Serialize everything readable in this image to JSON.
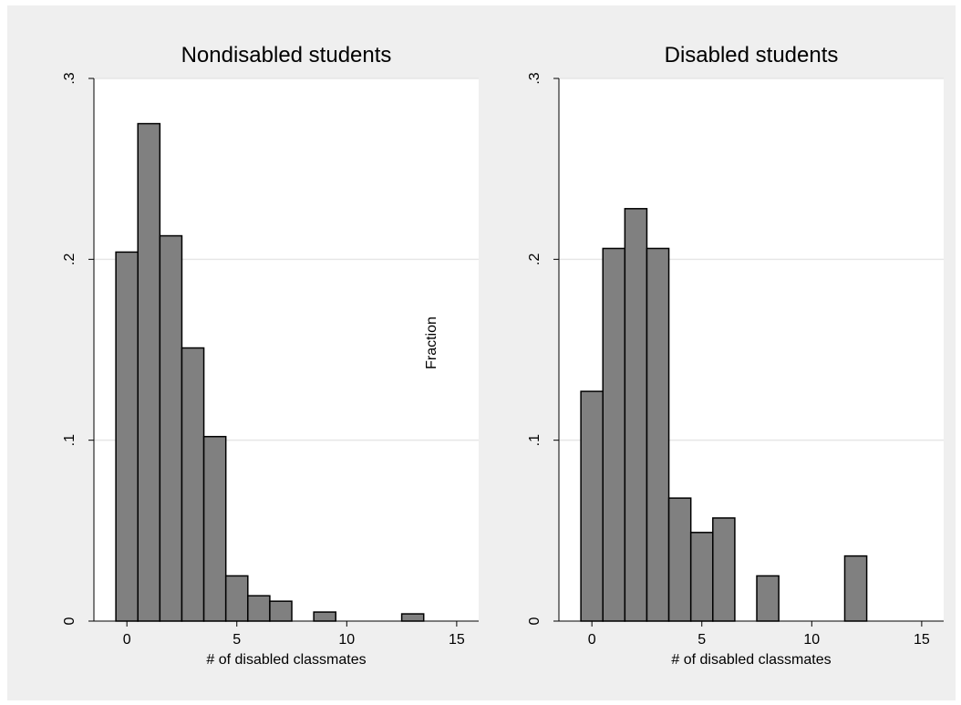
{
  "figure": {
    "shared_ylabel": "Fraction",
    "colors": {
      "background": "#efefef",
      "plot_bg": "#ffffff",
      "bar_fill": "#808080",
      "bar_stroke": "#000000",
      "grid": "#e6e6e6"
    }
  },
  "chart_data": [
    {
      "type": "bar",
      "title": "Nondisabled students",
      "xlabel": "# of disabled classmates",
      "ylabel": "Fraction",
      "xlim": [
        -1.5,
        16
      ],
      "ylim": [
        0,
        0.3
      ],
      "xticks": [
        0,
        5,
        10,
        15
      ],
      "xtick_labels": [
        "0",
        "5",
        "10",
        "15"
      ],
      "yticks": [
        0,
        0.1,
        0.2,
        0.3
      ],
      "ytick_labels": [
        "0",
        ".1",
        ".2",
        ".3"
      ],
      "grid": true,
      "bin_width": 1,
      "x": [
        0,
        1,
        2,
        3,
        4,
        5,
        6,
        7,
        9,
        13
      ],
      "values": [
        0.204,
        0.275,
        0.213,
        0.151,
        0.102,
        0.025,
        0.014,
        0.011,
        0.005,
        0.004
      ]
    },
    {
      "type": "bar",
      "title": "Disabled students",
      "xlabel": "# of disabled classmates",
      "ylabel": "Fraction",
      "xlim": [
        -1.5,
        16
      ],
      "ylim": [
        0,
        0.3
      ],
      "xticks": [
        0,
        5,
        10,
        15
      ],
      "xtick_labels": [
        "0",
        "5",
        "10",
        "15"
      ],
      "yticks": [
        0,
        0.1,
        0.2,
        0.3
      ],
      "ytick_labels": [
        "0",
        ".1",
        ".2",
        ".3"
      ],
      "grid": true,
      "bin_width": 1,
      "x": [
        0,
        1,
        2,
        3,
        4,
        5,
        6,
        8,
        12
      ],
      "values": [
        0.127,
        0.206,
        0.228,
        0.206,
        0.068,
        0.049,
        0.057,
        0.025,
        0.036
      ]
    }
  ]
}
